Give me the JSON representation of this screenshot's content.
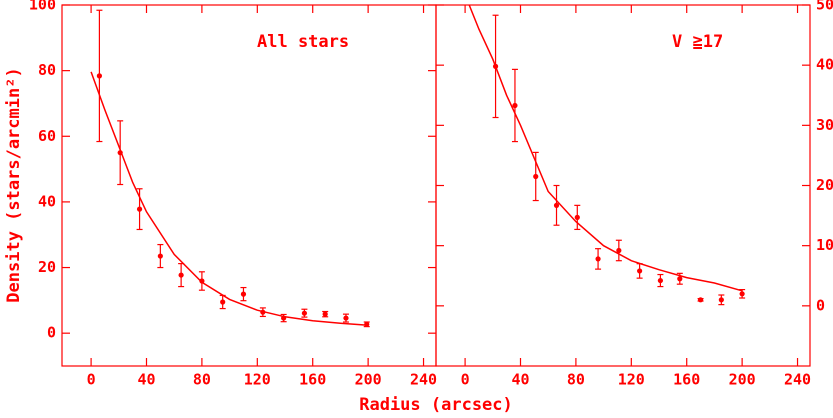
{
  "chart_data": [
    {
      "type": "scatter",
      "annotation": "All stars",
      "y_label": "Density (stars/arcmin²)",
      "x_label": "Radius (arcsec)",
      "color": "#ff0000",
      "ytick_side": "left",
      "xlim": [
        -21,
        249
      ],
      "ylim": [
        -10,
        100
      ],
      "xticks": [
        0,
        40,
        80,
        120,
        160,
        200,
        240
      ],
      "yticks": [
        0,
        20,
        40,
        60,
        80,
        100
      ],
      "x": [
        6,
        21,
        35,
        50,
        65,
        80,
        95,
        110,
        124,
        139,
        154,
        169,
        184,
        199
      ],
      "values": [
        78.4,
        55,
        37.8,
        23.5,
        17.7,
        15.9,
        9.5,
        11.9,
        6.4,
        4.6,
        6.1,
        5.8,
        4.6,
        2.7
      ],
      "errors": [
        20,
        9.7,
        6.2,
        3.5,
        3.5,
        2.8,
        2,
        2,
        1.3,
        1.1,
        1.2,
        0.8,
        1.2,
        0.7
      ],
      "fit": {
        "x": [
          0,
          10,
          20,
          30,
          40,
          60,
          80,
          100,
          120,
          140,
          160,
          180,
          200
        ],
        "values": [
          79.6,
          68,
          57,
          46,
          37,
          24,
          15.5,
          10.3,
          7,
          5,
          3.8,
          3,
          2.4
        ]
      }
    },
    {
      "type": "scatter",
      "annotation": "V  ≧17",
      "color": "#ff0000",
      "ytick_side": "right",
      "xlim": [
        -21,
        249
      ],
      "ylim": [
        -10,
        50
      ],
      "xticks": [
        0,
        40,
        80,
        120,
        160,
        200,
        240
      ],
      "yticks": [
        0,
        10,
        20,
        30,
        40,
        50
      ],
      "x": [
        22,
        36,
        51,
        66,
        81,
        96,
        111,
        126,
        141,
        155,
        170,
        185,
        200
      ],
      "values": [
        39.8,
        33.3,
        21.5,
        16.7,
        14.7,
        7.8,
        9.2,
        5.8,
        4.2,
        4.5,
        1,
        1,
        2
      ],
      "errors": [
        8.5,
        6,
        4,
        3.3,
        2,
        1.7,
        1.7,
        1.2,
        1,
        0.9,
        0.2,
        0.8,
        0.7
      ],
      "fit": {
        "x": [
          3,
          10,
          20,
          30,
          40,
          60,
          80,
          100,
          120,
          140,
          160,
          180,
          200
        ],
        "values": [
          50,
          46,
          41,
          35,
          30,
          19,
          14,
          10,
          7.5,
          6,
          4.7,
          3.8,
          2.5
        ]
      }
    }
  ]
}
